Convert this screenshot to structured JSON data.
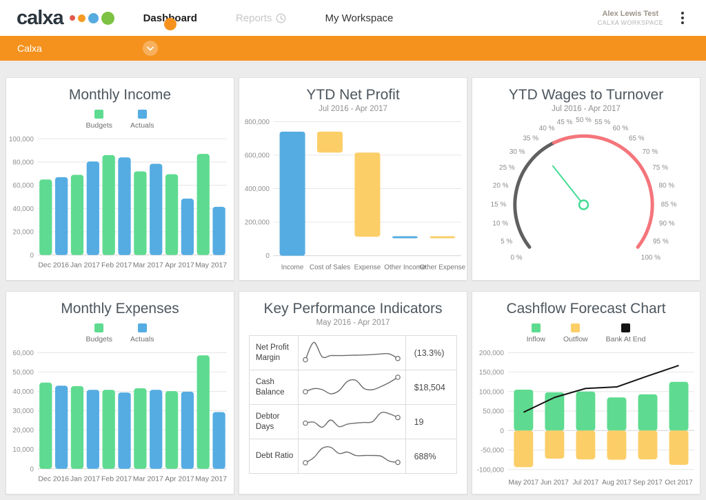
{
  "header": {
    "logo_text": "calxa",
    "logo_dot_colors": [
      "#E2574C",
      "#F59B23",
      "#55ABE0",
      "#7DC242"
    ],
    "tabs": [
      {
        "label": "Dashboard",
        "state": "active"
      },
      {
        "label": "Reports",
        "state": "disabled",
        "icon": "clock-icon"
      },
      {
        "label": "My Workspace",
        "state": "normal"
      }
    ],
    "user": {
      "name": "Alex Lewis Test",
      "workspace": "CALXA WORKSPACE"
    }
  },
  "org_bar": {
    "label": "Calxa"
  },
  "colors": {
    "accent_orange": "#F5921E",
    "budget_green": "#5EDB90",
    "actual_blue": "#55ACE2",
    "outflow_yellow": "#FBCE68",
    "gauge_gray": "#606060",
    "gauge_red": "#F4757B",
    "needle_green": "#42DB92",
    "line_black": "#141414"
  },
  "chart_data": [
    {
      "type": "grouped_bar",
      "title": "Monthly Income",
      "categories": [
        "Dec 2016",
        "Jan 2017",
        "Feb 2017",
        "Mar 2017",
        "Apr 2017",
        "May 2017"
      ],
      "series": [
        {
          "name": "Budgets",
          "color": "#5EDB90",
          "values": [
            65000,
            69000,
            86000,
            72000,
            69500,
            87000
          ]
        },
        {
          "name": "Actuals",
          "color": "#55ACE2",
          "values": [
            67000,
            80500,
            84000,
            78500,
            48500,
            41500
          ]
        }
      ],
      "ylim": [
        0,
        100000
      ],
      "ytick_step": 20000,
      "grid": true,
      "legend_position": "top"
    },
    {
      "type": "waterfall",
      "title": "YTD Net Profit",
      "subtitle": "Jul 2016 - Apr 2017",
      "bars": [
        {
          "label": "Income",
          "from": 0,
          "to": 740000,
          "color": "#55ACE2"
        },
        {
          "label": "Cost of Sales",
          "from": 740000,
          "to": 615000,
          "color": "#FBCE68"
        },
        {
          "label": "Expense",
          "from": 615000,
          "to": 113000,
          "color": "#FBCE68"
        },
        {
          "label": "Other Income",
          "from": 113000,
          "to": 116000,
          "color": "#55ACE2"
        },
        {
          "label": "Other Expense",
          "from": 116000,
          "to": 105000,
          "color": "#FBCE68"
        }
      ],
      "ylim": [
        0,
        800000
      ],
      "ytick_step": 200000,
      "grid": true
    },
    {
      "type": "gauge",
      "title": "YTD Wages to Turnover",
      "subtitle": "Jul 2016 - Apr 2017",
      "min": 0,
      "max": 100,
      "value": 35,
      "tick_step": 5,
      "label_suffix": " %",
      "ranges": [
        {
          "from": 0,
          "to": 40,
          "color": "#606060"
        },
        {
          "from": 40,
          "to": 100,
          "color": "#F4757B"
        }
      ],
      "needle_color": "#42DB92"
    },
    {
      "type": "grouped_bar",
      "title": "Monthly Expenses",
      "categories": [
        "Dec 2016",
        "Jan 2017",
        "Feb 2017",
        "Mar 2017",
        "Apr 2017",
        "May 2017"
      ],
      "series": [
        {
          "name": "Budgets",
          "color": "#5EDB90",
          "values": [
            44500,
            42700,
            40800,
            41600,
            40100,
            58600
          ]
        },
        {
          "name": "Actuals",
          "color": "#55ACE2",
          "values": [
            42900,
            40800,
            39400,
            40800,
            39800,
            29300
          ]
        }
      ],
      "ylim": [
        0,
        60000
      ],
      "ytick_step": 10000,
      "grid": true,
      "legend_position": "top"
    },
    {
      "type": "kpi_table",
      "title": "Key Performance Indicators",
      "subtitle": "May 2016 - Apr 2017",
      "rows": [
        {
          "label": "Net Profit Margin",
          "value": "(13.3%)",
          "spark": [
            0.08,
            0.92,
            0.22,
            0.28,
            0.28,
            0.29,
            0.3,
            0.31,
            0.33,
            0.36,
            0.36,
            0.14
          ]
        },
        {
          "label": "Cash Balance",
          "value": "$18,504",
          "spark": [
            0.2,
            0.35,
            0.3,
            0.1,
            0.25,
            0.7,
            0.75,
            0.35,
            0.3,
            0.45,
            0.65,
            0.9
          ]
        },
        {
          "label": "Debtor Days",
          "value": "19",
          "spark": [
            0.35,
            0.4,
            0.15,
            0.5,
            0.18,
            0.3,
            0.35,
            0.38,
            0.42,
            0.85,
            0.8,
            0.62
          ]
        },
        {
          "label": "Debt Ratio",
          "value": "688%",
          "spark": [
            0.1,
            0.35,
            0.8,
            0.85,
            0.55,
            0.62,
            0.45,
            0.45,
            0.45,
            0.42,
            0.18,
            0.12
          ]
        }
      ]
    },
    {
      "type": "bar_line",
      "title": "Cashflow Forecast Chart",
      "categories": [
        "May 2017",
        "Jun 2017",
        "Jul 2017",
        "Aug 2017",
        "Sep 2017",
        "Oct 2017"
      ],
      "series": [
        {
          "name": "Inflow",
          "kind": "bar",
          "color": "#5EDB90",
          "values": [
            105000,
            98000,
            100000,
            85000,
            93000,
            125000
          ]
        },
        {
          "name": "Outflow",
          "kind": "bar",
          "color": "#FBCE68",
          "values": [
            -94000,
            -72000,
            -74000,
            -75000,
            -74000,
            -88000
          ]
        },
        {
          "name": "Bank At End",
          "kind": "line",
          "color": "#141414",
          "values": [
            47000,
            85000,
            108000,
            112000,
            140000,
            167000
          ]
        }
      ],
      "ylim": [
        -100000,
        200000
      ],
      "ytick_step": 50000,
      "grid": true,
      "legend_position": "top"
    }
  ]
}
